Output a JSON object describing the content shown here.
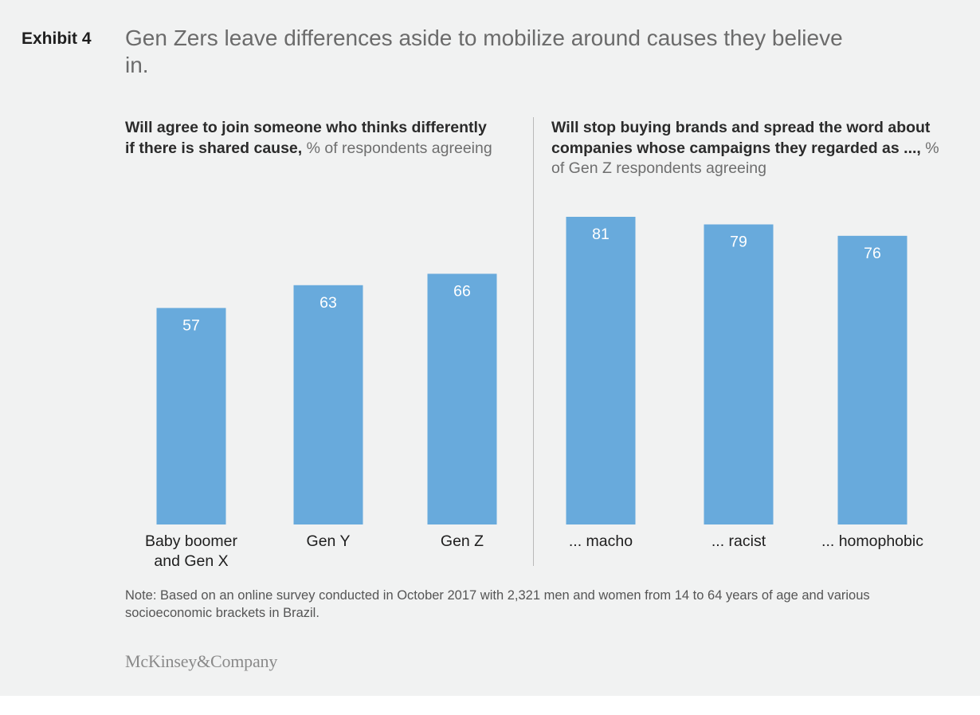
{
  "exhibit": {
    "label": "Exhibit 4",
    "title": "Gen Zers leave differences aside to mobilize around causes they believe in."
  },
  "left_panel": {
    "subtitle_bold": "Will agree to join someone who thinks differently if there is shared cause,",
    "subtitle_light": " % of respondents agreeing"
  },
  "right_panel": {
    "subtitle_bold": "Will stop buying brands and spread the word about companies whose campaigns they regarded as ...,",
    "subtitle_light": " % of Gen Z respondents agreeing"
  },
  "chart_data": [
    {
      "type": "bar",
      "categories": [
        "Baby boomer\nand Gen X",
        "Gen Y",
        "Gen Z"
      ],
      "values": [
        57,
        63,
        66
      ],
      "value_labels": [
        "57",
        "63",
        "66"
      ],
      "unit": "% of respondents agreeing",
      "ylim": [
        0,
        81
      ],
      "color": "#68aadc",
      "grid": false,
      "axes_visible": false
    },
    {
      "type": "bar",
      "categories": [
        "... macho",
        "... racist",
        "... homophobic"
      ],
      "values": [
        81,
        79,
        76
      ],
      "value_labels": [
        "81",
        "79",
        "76"
      ],
      "unit": "% of Gen Z respondents agreeing",
      "ylim": [
        0,
        81
      ],
      "color": "#68aadc",
      "grid": false,
      "axes_visible": false
    }
  ],
  "note": "Note: Based on an online survey conducted in October 2017 with 2,321 men and women from 14 to 64 years of age and various socioeconomic brackets in Brazil.",
  "brand": "McKinsey&Company"
}
